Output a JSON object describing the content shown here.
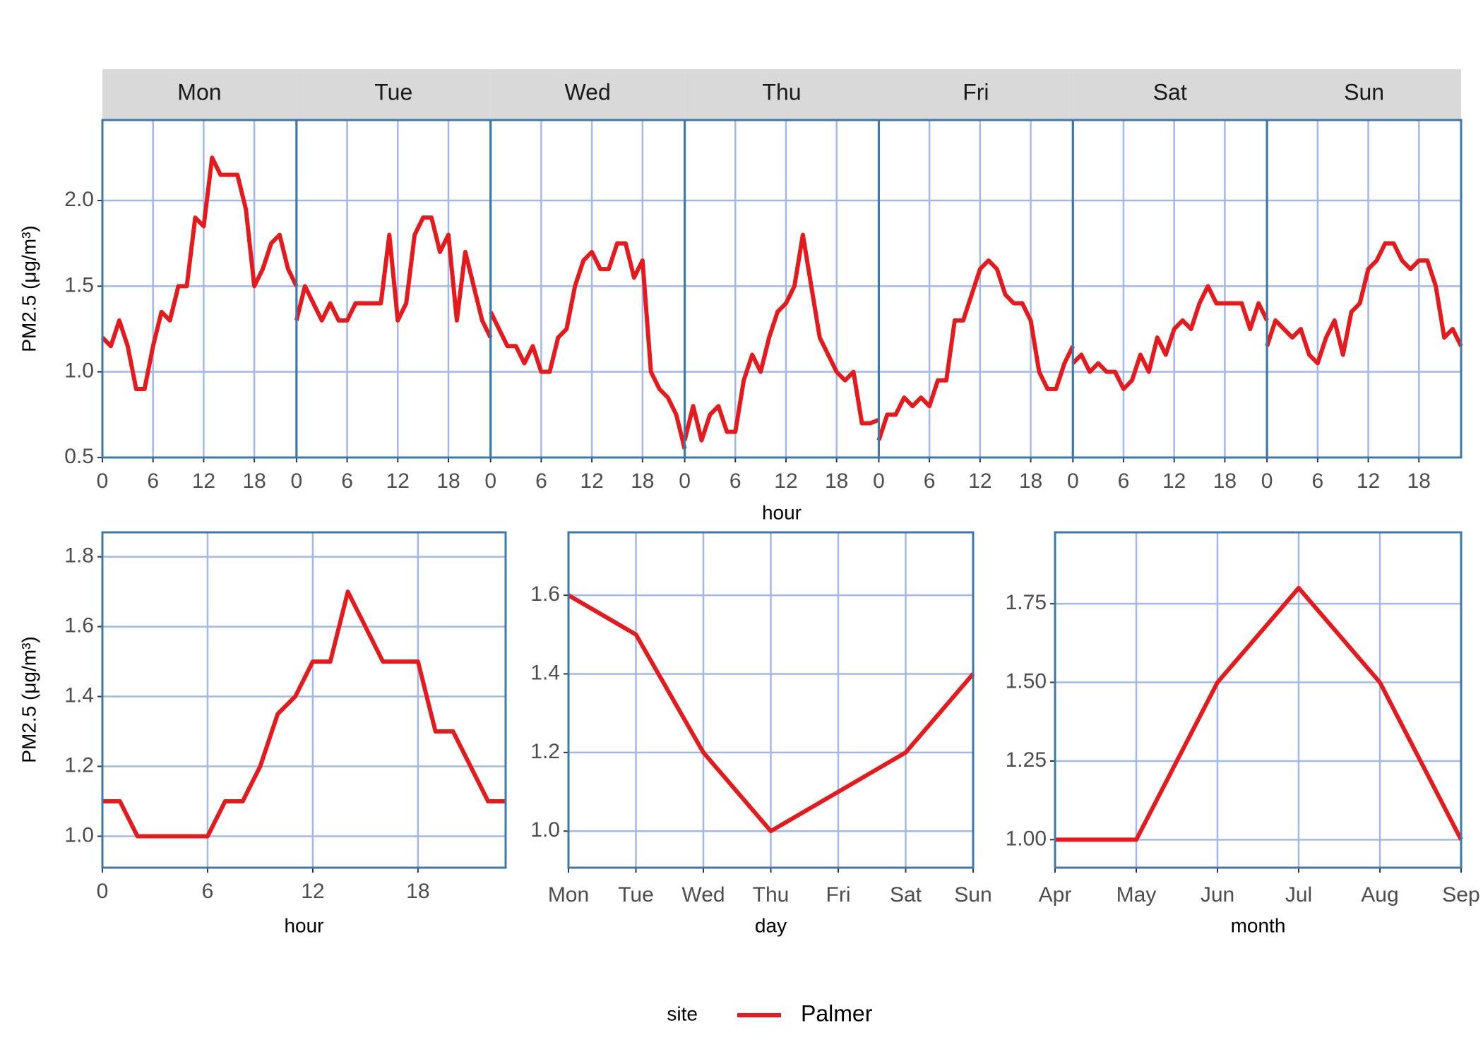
{
  "chart_data": [
    {
      "type": "line",
      "x_label": "hour",
      "y_label": "PM2.5 (μg/m³)",
      "x": [
        0,
        1,
        2,
        3,
        4,
        5,
        6,
        7,
        8,
        9,
        10,
        11,
        12,
        13,
        14,
        15,
        16,
        17,
        18,
        19,
        20,
        21,
        22,
        23
      ],
      "facets": [
        {
          "label": "Mon",
          "values": [
            1.2,
            1.15,
            1.3,
            1.15,
            0.9,
            0.9,
            1.15,
            1.35,
            1.3,
            1.5,
            1.5,
            1.9,
            1.85,
            2.25,
            2.15,
            2.15,
            2.15,
            1.95,
            1.5,
            1.6,
            1.75,
            1.8,
            1.6,
            1.5
          ]
        },
        {
          "label": "Tue",
          "values": [
            1.3,
            1.5,
            1.4,
            1.3,
            1.4,
            1.3,
            1.3,
            1.4,
            1.4,
            1.4,
            1.4,
            1.8,
            1.3,
            1.4,
            1.8,
            1.9,
            1.9,
            1.7,
            1.8,
            1.3,
            1.7,
            1.5,
            1.3,
            1.2
          ]
        },
        {
          "label": "Wed",
          "values": [
            1.35,
            1.25,
            1.15,
            1.15,
            1.05,
            1.15,
            1.0,
            1.0,
            1.2,
            1.25,
            1.5,
            1.65,
            1.7,
            1.6,
            1.6,
            1.75,
            1.75,
            1.55,
            1.65,
            1.0,
            0.9,
            0.85,
            0.75,
            0.55
          ]
        },
        {
          "label": "Thu",
          "values": [
            0.6,
            0.8,
            0.6,
            0.75,
            0.8,
            0.65,
            0.65,
            0.95,
            1.1,
            1.0,
            1.2,
            1.35,
            1.4,
            1.5,
            1.8,
            1.5,
            1.2,
            1.1,
            1.0,
            0.95,
            1.0,
            0.7,
            0.7,
            0.72
          ]
        },
        {
          "label": "Fri",
          "values": [
            0.6,
            0.75,
            0.75,
            0.85,
            0.8,
            0.85,
            0.8,
            0.95,
            0.95,
            1.3,
            1.3,
            1.45,
            1.6,
            1.65,
            1.6,
            1.45,
            1.4,
            1.4,
            1.3,
            1.0,
            0.9,
            0.9,
            1.05,
            1.15
          ]
        },
        {
          "label": "Sat",
          "values": [
            1.05,
            1.1,
            1.0,
            1.05,
            1.0,
            1.0,
            0.9,
            0.95,
            1.1,
            1.0,
            1.2,
            1.1,
            1.25,
            1.3,
            1.25,
            1.4,
            1.5,
            1.4,
            1.4,
            1.4,
            1.4,
            1.25,
            1.4,
            1.3
          ]
        },
        {
          "label": "Sun",
          "values": [
            1.15,
            1.3,
            1.25,
            1.2,
            1.25,
            1.1,
            1.05,
            1.2,
            1.3,
            1.1,
            1.35,
            1.4,
            1.6,
            1.65,
            1.75,
            1.75,
            1.65,
            1.6,
            1.65,
            1.65,
            1.5,
            1.2,
            1.25,
            1.15
          ]
        }
      ],
      "xlim": [
        0,
        23
      ],
      "xticks": [
        0,
        6,
        12,
        18
      ],
      "ylim": [
        0.5,
        2.47
      ],
      "yticks": [
        {
          "value": 0.5,
          "label": "0.5"
        },
        {
          "value": 1,
          "label": "1.0"
        },
        {
          "value": 1.5,
          "label": "1.5"
        },
        {
          "value": 2,
          "label": "2.0"
        }
      ],
      "grid": true
    },
    {
      "type": "line",
      "x_label": "hour",
      "y_label": "PM2.5 (μg/m³)",
      "x": [
        0,
        1,
        2,
        3,
        4,
        5,
        6,
        7,
        8,
        9,
        10,
        11,
        12,
        13,
        14,
        15,
        16,
        17,
        18,
        19,
        20,
        21,
        22,
        23
      ],
      "values": [
        1.1,
        1.1,
        1.0,
        1.0,
        1.0,
        1.0,
        1.0,
        1.1,
        1.1,
        1.2,
        1.35,
        1.4,
        1.5,
        1.5,
        1.7,
        1.6,
        1.5,
        1.5,
        1.5,
        1.3,
        1.3,
        1.2,
        1.1,
        1.1
      ],
      "xlim": [
        0,
        23
      ],
      "xticks": [
        0,
        6,
        12,
        18
      ],
      "ylim": [
        0.91,
        1.87
      ],
      "yticks": [
        {
          "value": 1,
          "label": "1.0"
        },
        {
          "value": 1.2,
          "label": "1.2"
        },
        {
          "value": 1.4,
          "label": "1.4"
        },
        {
          "value": 1.6,
          "label": "1.6"
        },
        {
          "value": 1.8,
          "label": "1.8"
        }
      ],
      "grid": true
    },
    {
      "type": "line",
      "x_label": "day",
      "categories": [
        "Mon",
        "Tue",
        "Wed",
        "Thu",
        "Fri",
        "Sat",
        "Sun"
      ],
      "values": [
        1.6,
        1.5,
        1.2,
        1.0,
        1.1,
        1.2,
        1.4
      ],
      "ylim": [
        0.907,
        1.76
      ],
      "yticks": [
        {
          "value": 1,
          "label": "1.0"
        },
        {
          "value": 1.2,
          "label": "1.2"
        },
        {
          "value": 1.4,
          "label": "1.4"
        },
        {
          "value": 1.6,
          "label": "1.6"
        }
      ],
      "grid": true
    },
    {
      "type": "line",
      "x_label": "month",
      "categories": [
        "Apr",
        "May",
        "Jun",
        "Jul",
        "Aug",
        "Sep"
      ],
      "values": [
        1.0,
        1.0,
        1.5,
        1.8,
        1.5,
        1.0
      ],
      "ylim": [
        0.911,
        1.977
      ],
      "yticks": [
        {
          "value": 1,
          "label": "1.00"
        },
        {
          "value": 1.25,
          "label": "1.25"
        },
        {
          "value": 1.5,
          "label": "1.50"
        },
        {
          "value": 1.75,
          "label": "1.75"
        }
      ],
      "grid": true
    }
  ],
  "legend": {
    "title": "site",
    "position": "bottom",
    "entries": [
      {
        "name": "Palmer",
        "color": "#e41a1c"
      }
    ]
  }
}
